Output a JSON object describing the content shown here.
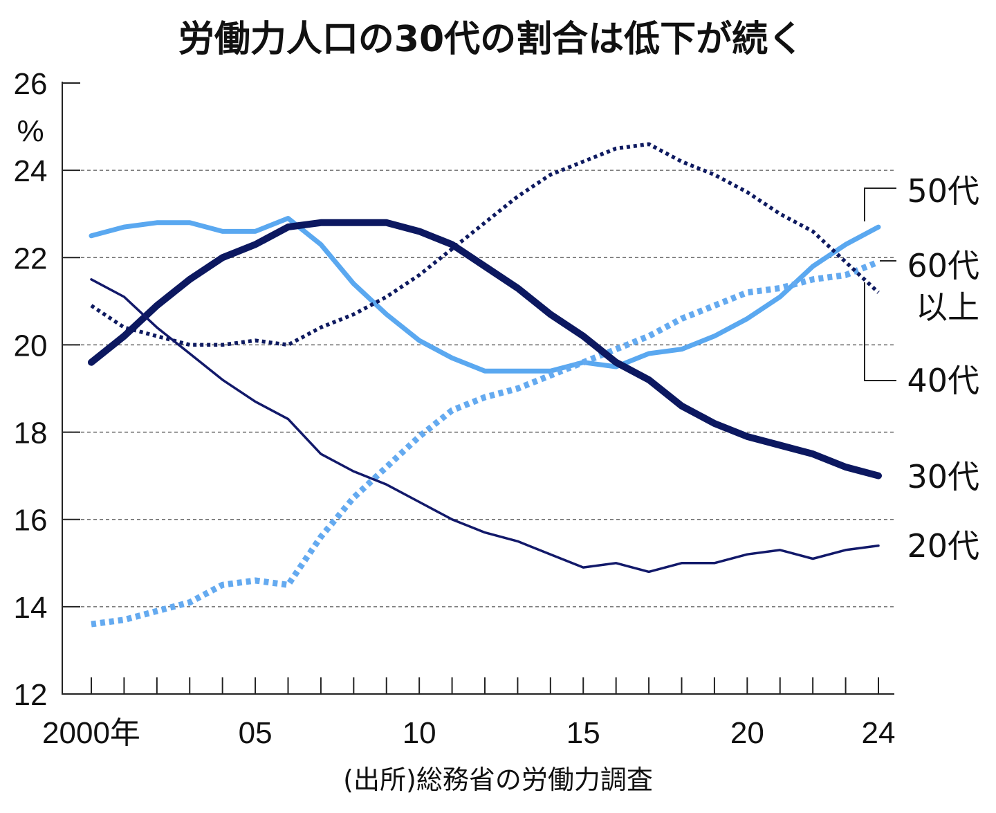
{
  "chart_data": {
    "type": "line",
    "title": "労働力人口の30代の割合は低下が続く",
    "ylabel": "%",
    "xlabel": "",
    "source": "(出所)総務省の労働力調査",
    "ylim": [
      12,
      26
    ],
    "yticks": [
      "12",
      "14",
      "16",
      "18",
      "20",
      "22",
      "24",
      "26"
    ],
    "xlim": [
      2000,
      2024
    ],
    "xtick_labels": [
      {
        "year": 2000,
        "label": "2000年"
      },
      {
        "year": 2005,
        "label": "05"
      },
      {
        "year": 2010,
        "label": "10"
      },
      {
        "year": 2015,
        "label": "15"
      },
      {
        "year": 2020,
        "label": "20"
      },
      {
        "year": 2024,
        "label": "24"
      }
    ],
    "grid": "horizontal dashed at 14,16,18,20,22,24",
    "x": [
      2000,
      2001,
      2002,
      2003,
      2004,
      2005,
      2006,
      2007,
      2008,
      2009,
      2010,
      2011,
      2012,
      2013,
      2014,
      2015,
      2016,
      2017,
      2018,
      2019,
      2020,
      2021,
      2022,
      2023,
      2024
    ],
    "series": [
      {
        "key": "s50",
        "name": "50代",
        "label_lines": [
          "50代"
        ],
        "color": "#5aa8f0",
        "style": "solid-medium",
        "values": [
          22.5,
          22.7,
          22.8,
          22.8,
          22.6,
          22.6,
          22.9,
          22.3,
          21.4,
          20.7,
          20.1,
          19.7,
          19.4,
          19.4,
          19.4,
          19.6,
          19.5,
          19.8,
          19.9,
          20.2,
          20.6,
          21.1,
          21.8,
          22.3,
          22.7
        ]
      },
      {
        "key": "s60",
        "name": "60代以上",
        "label_lines": [
          "60代",
          "以上"
        ],
        "color": "#64aaf0",
        "style": "dotted-thick",
        "values": [
          13.6,
          13.7,
          13.9,
          14.1,
          14.5,
          14.6,
          14.5,
          15.6,
          16.5,
          17.2,
          17.9,
          18.5,
          18.8,
          19.0,
          19.3,
          19.6,
          19.9,
          20.2,
          20.6,
          20.9,
          21.2,
          21.3,
          21.5,
          21.6,
          21.9
        ]
      },
      {
        "key": "s40",
        "name": "40代",
        "label_lines": [
          "40代"
        ],
        "color": "#0e1a60",
        "style": "dotted-medium",
        "values": [
          20.9,
          20.4,
          20.2,
          20.0,
          20.0,
          20.1,
          20.0,
          20.4,
          20.7,
          21.1,
          21.6,
          22.2,
          22.8,
          23.4,
          23.9,
          24.2,
          24.5,
          24.6,
          24.2,
          23.9,
          23.5,
          23.0,
          22.6,
          21.9,
          21.2
        ]
      },
      {
        "key": "s30",
        "name": "30代",
        "label_lines": [
          "30代"
        ],
        "color": "#0c1860",
        "style": "solid-thick",
        "values": [
          19.6,
          20.2,
          20.9,
          21.5,
          22.0,
          22.3,
          22.7,
          22.8,
          22.8,
          22.8,
          22.6,
          22.3,
          21.8,
          21.3,
          20.7,
          20.2,
          19.6,
          19.2,
          18.6,
          18.2,
          17.9,
          17.7,
          17.5,
          17.2,
          17.0
        ]
      },
      {
        "key": "s20",
        "name": "20代",
        "label_lines": [
          "20代"
        ],
        "color": "#12196a",
        "style": "solid-thin",
        "values": [
          21.5,
          21.1,
          20.4,
          19.8,
          19.2,
          18.7,
          18.3,
          17.5,
          17.1,
          16.8,
          16.4,
          16.0,
          15.7,
          15.5,
          15.2,
          14.9,
          15.0,
          14.8,
          15.0,
          15.0,
          15.2,
          15.3,
          15.1,
          15.3,
          15.4
        ]
      }
    ]
  }
}
